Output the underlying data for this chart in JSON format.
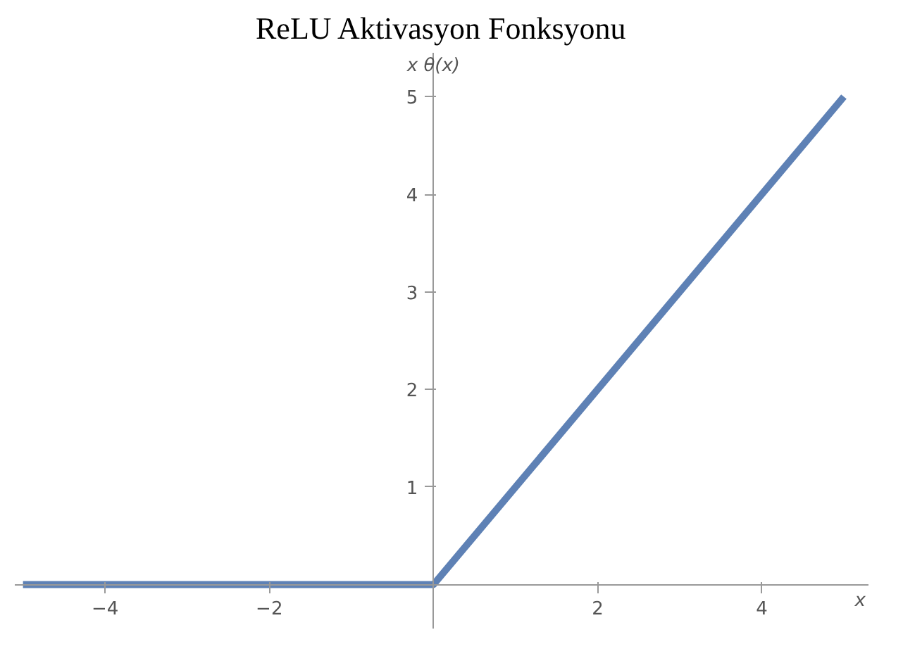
{
  "chart_data": {
    "type": "line",
    "title": "ReLU Aktivasyon Fonksyonu",
    "xlabel": "x",
    "ylabel": "x θ(x)",
    "x": [
      -5,
      0,
      5
    ],
    "series": [
      {
        "color": "#5e81b5",
        "values": [
          0,
          0,
          5
        ]
      }
    ],
    "xlim": [
      -5.1,
      5.3
    ],
    "ylim": [
      -0.45,
      5.45
    ],
    "xticks": [
      {
        "value": -4,
        "label": "−4"
      },
      {
        "value": -2,
        "label": "−2"
      },
      2,
      4
    ],
    "yticks": [
      1,
      2,
      3,
      4,
      5
    ],
    "grid": false,
    "marker": "none",
    "line_style": "solid"
  }
}
